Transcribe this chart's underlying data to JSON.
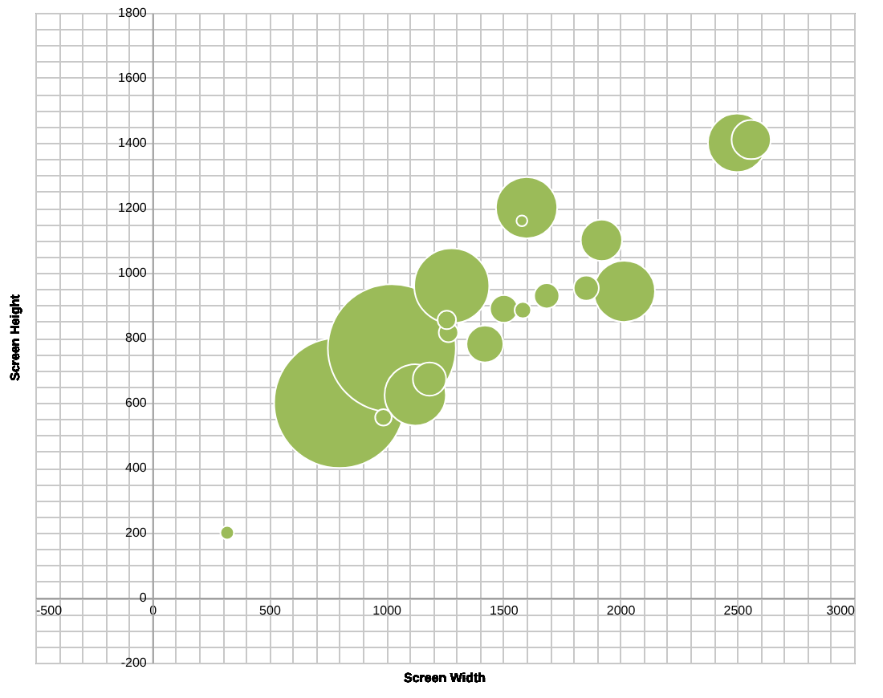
{
  "chart_data": {
    "type": "bubble",
    "xlabel": "Screen Width",
    "ylabel": "Screen Height",
    "xlim": [
      -500,
      3000
    ],
    "ylim": [
      -200,
      1800
    ],
    "xticks": [
      -500,
      {
        "value": -400,
        "label": null
      },
      {
        "value": -300,
        "label": null
      },
      {
        "value": -200,
        "label": null
      },
      {
        "value": -100,
        "label": null
      },
      0,
      {
        "value": 100,
        "label": null
      },
      {
        "value": 200,
        "label": null
      },
      {
        "value": 300,
        "label": null
      },
      {
        "value": 400,
        "label": null
      },
      500,
      {
        "value": 600,
        "label": null
      },
      {
        "value": 700,
        "label": null
      },
      {
        "value": 800,
        "label": null
      },
      {
        "value": 900,
        "label": null
      },
      1000,
      {
        "value": 1100,
        "label": null
      },
      {
        "value": 1200,
        "label": null
      },
      {
        "value": 1300,
        "label": null
      },
      {
        "value": 1400,
        "label": null
      },
      1500,
      {
        "value": 1600,
        "label": null
      },
      {
        "value": 1700,
        "label": null
      },
      {
        "value": 1800,
        "label": null
      },
      {
        "value": 1900,
        "label": null
      },
      2000,
      {
        "value": 2100,
        "label": null
      },
      {
        "value": 2200,
        "label": null
      },
      {
        "value": 2300,
        "label": null
      },
      {
        "value": 2400,
        "label": null
      },
      2500,
      {
        "value": 2600,
        "label": null
      },
      {
        "value": 2700,
        "label": null
      },
      {
        "value": 2800,
        "label": null
      },
      {
        "value": 2900,
        "label": null
      },
      3000
    ],
    "yticks": [
      -200,
      {
        "value": -150,
        "label": null
      },
      {
        "value": -100,
        "label": null
      },
      {
        "value": -50,
        "label": null
      },
      0,
      {
        "value": 50,
        "label": null
      },
      {
        "value": 100,
        "label": null
      },
      {
        "value": 150,
        "label": null
      },
      200,
      {
        "value": 250,
        "label": null
      },
      {
        "value": 300,
        "label": null
      },
      {
        "value": 350,
        "label": null
      },
      400,
      {
        "value": 450,
        "label": null
      },
      {
        "value": 500,
        "label": null
      },
      {
        "value": 550,
        "label": null
      },
      600,
      {
        "value": 650,
        "label": null
      },
      {
        "value": 700,
        "label": null
      },
      {
        "value": 750,
        "label": null
      },
      800,
      {
        "value": 850,
        "label": null
      },
      {
        "value": 900,
        "label": null
      },
      {
        "value": 950,
        "label": null
      },
      1000,
      {
        "value": 1050,
        "label": null
      },
      {
        "value": 1100,
        "label": null
      },
      {
        "value": 1150,
        "label": null
      },
      1200,
      {
        "value": 1250,
        "label": null
      },
      {
        "value": 1300,
        "label": null
      },
      {
        "value": 1350,
        "label": null
      },
      1400,
      {
        "value": 1450,
        "label": null
      },
      {
        "value": 1500,
        "label": null
      },
      {
        "value": 1550,
        "label": null
      },
      1600,
      {
        "value": 1650,
        "label": null
      },
      {
        "value": 1700,
        "label": null
      },
      {
        "value": 1750,
        "label": null
      },
      1800
    ],
    "grid": true,
    "series": [
      {
        "color": "#9bbb59",
        "x": [
          800,
          1024,
          1280,
          2018,
          1600,
          1124,
          2500,
          1920,
          1422,
          2560,
          1185,
          1503,
          1855,
          1686,
          1266,
          1259,
          1584,
          988,
          320,
          1580
        ],
        "values": [
          600,
          768,
          960,
          943,
          1200,
          624,
          1400,
          1100,
          781,
          1410,
          673,
          889,
          953,
          929,
          816,
          855,
          885,
          555,
          200,
          1160
        ],
        "sizes": [
          1,
          0.96,
          0.33,
          0.22,
          0.22,
          0.22,
          0.2,
          0.1,
          0.08,
          0.09,
          0.065,
          0.045,
          0.037,
          0.037,
          0.022,
          0.02,
          0.016,
          0.016,
          0.011,
          0.007
        ]
      }
    ]
  }
}
